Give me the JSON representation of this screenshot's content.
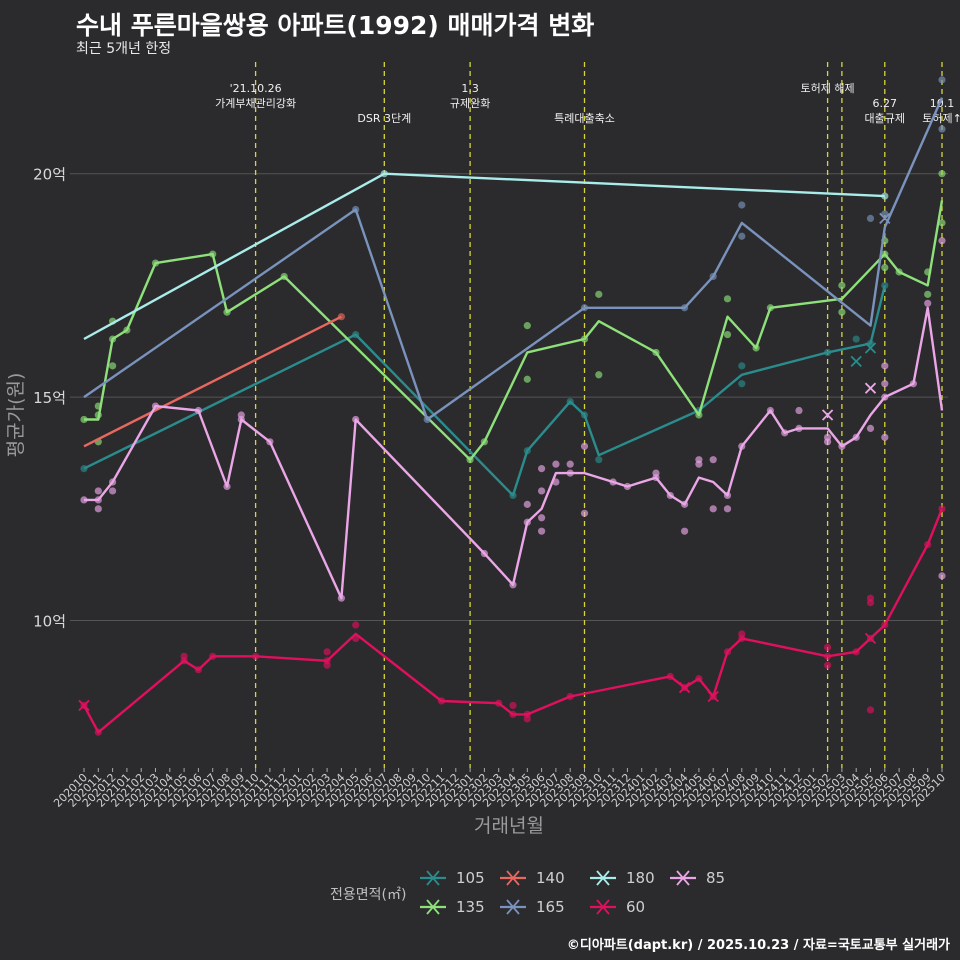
{
  "title": "수내 푸른마을쌍용 아파트(1992) 매매가격 변화",
  "subtitle": "최근 5개년 한정",
  "caption": "©디아파트(dapt.kr) / 2025.10.23 / 자료=국토교통부 실거래가",
  "colors": {
    "background": "#2b2b2d",
    "grid": "#555555",
    "event_line": "#d6d63a"
  },
  "chart_data": {
    "type": "line",
    "xlabel": "거래년월",
    "ylabel": "평균가(원)",
    "ylim": [
      6.7,
      22.5
    ],
    "yticks": [
      {
        "value": 10,
        "label": "10억"
      },
      {
        "value": 15,
        "label": "15억"
      },
      {
        "value": 20,
        "label": "20억"
      }
    ],
    "x_ticks": [
      "202010",
      "202011",
      "202012",
      "202101",
      "202102",
      "202103",
      "202104",
      "202105",
      "202106",
      "202107",
      "202108",
      "202109",
      "202110",
      "202111",
      "202112",
      "202201",
      "202202",
      "202203",
      "202204",
      "202205",
      "202206",
      "202207",
      "202208",
      "202209",
      "202210",
      "202211",
      "202212",
      "202301",
      "202302",
      "202303",
      "202304",
      "202305",
      "202306",
      "202307",
      "202308",
      "202309",
      "202310",
      "202311",
      "202312",
      "202401",
      "202402",
      "202403",
      "202404",
      "202405",
      "202406",
      "202407",
      "202408",
      "202409",
      "202410",
      "202411",
      "202412",
      "202501",
      "202502",
      "202503",
      "202504",
      "202505",
      "202506",
      "202507",
      "202508",
      "202509",
      "202510"
    ],
    "events": [
      {
        "x": 12.0,
        "lines": [
          "'21.10.26",
          "가계부채관리강화"
        ]
      },
      {
        "x": 21.0,
        "lines": [
          "",
          "",
          "DSR 3단계"
        ]
      },
      {
        "x": 27.0,
        "lines": [
          "1.3",
          "규제완화"
        ]
      },
      {
        "x": 35.0,
        "lines": [
          "",
          "",
          "특례대출축소"
        ]
      },
      {
        "x": 52.0,
        "lines": [
          "토허제 해제"
        ]
      },
      {
        "x": 53.0,
        "lines": []
      },
      {
        "x": 56.0,
        "lines": [
          "",
          "6.27",
          "대출규제"
        ]
      },
      {
        "x": 60.0,
        "lines": [
          "",
          "10.1",
          "토허제↑"
        ]
      }
    ],
    "legend_title": "전용면적(㎡)",
    "series": [
      {
        "name": "105",
        "color": "#2a8c8c",
        "line": [
          [
            0,
            13.4
          ],
          [
            19,
            16.4
          ],
          [
            30,
            12.8
          ],
          [
            31,
            13.8
          ],
          [
            34,
            14.9
          ],
          [
            35,
            14.6
          ],
          [
            36,
            13.7
          ],
          [
            43,
            14.7
          ],
          [
            46,
            15.5
          ],
          [
            52,
            16.0
          ],
          [
            55,
            16.2
          ],
          [
            56,
            17.5
          ]
        ],
        "points": [
          [
            0,
            13.4
          ],
          [
            19,
            16.4
          ],
          [
            30,
            12.8
          ],
          [
            31,
            13.8
          ],
          [
            34,
            14.9
          ],
          [
            35,
            14.6
          ],
          [
            36,
            13.6
          ],
          [
            43,
            14.7
          ],
          [
            46,
            15.3
          ],
          [
            46,
            15.7
          ],
          [
            52,
            16.0
          ],
          [
            54,
            16.3
          ],
          [
            55,
            16.2
          ],
          [
            56,
            17.5
          ]
        ],
        "crosses": [
          [
            54,
            15.8
          ],
          [
            55,
            16.1
          ]
        ]
      },
      {
        "name": "135",
        "color": "#8ee07a",
        "line": [
          [
            0,
            14.5
          ],
          [
            1,
            14.5
          ],
          [
            2,
            16.3
          ],
          [
            3,
            16.5
          ],
          [
            5,
            18.0
          ],
          [
            9,
            18.2
          ],
          [
            10,
            16.9
          ],
          [
            14,
            17.7
          ],
          [
            27,
            13.6
          ],
          [
            28,
            14.0
          ],
          [
            31,
            16.0
          ],
          [
            35,
            16.3
          ],
          [
            36,
            16.7
          ],
          [
            40,
            16.0
          ],
          [
            43,
            14.6
          ],
          [
            45,
            16.8
          ],
          [
            47,
            16.1
          ],
          [
            48,
            17.0
          ],
          [
            53,
            17.2
          ],
          [
            56,
            18.2
          ],
          [
            57,
            17.8
          ],
          [
            59,
            17.5
          ],
          [
            60,
            19.4
          ]
        ],
        "points": [
          [
            0,
            14.5
          ],
          [
            1,
            14.0
          ],
          [
            1,
            14.6
          ],
          [
            1,
            14.8
          ],
          [
            2,
            15.7
          ],
          [
            2,
            16.3
          ],
          [
            2,
            16.7
          ],
          [
            3,
            16.5
          ],
          [
            5,
            18.0
          ],
          [
            9,
            18.2
          ],
          [
            10,
            16.9
          ],
          [
            14,
            17.7
          ],
          [
            27,
            13.6
          ],
          [
            28,
            14.0
          ],
          [
            31,
            16.6
          ],
          [
            31,
            15.4
          ],
          [
            35,
            16.3
          ],
          [
            36,
            17.3
          ],
          [
            36,
            15.5
          ],
          [
            40,
            16.0
          ],
          [
            43,
            14.6
          ],
          [
            45,
            16.4
          ],
          [
            45,
            17.2
          ],
          [
            47,
            16.1
          ],
          [
            48,
            17.0
          ],
          [
            53,
            17.5
          ],
          [
            53,
            16.9
          ],
          [
            56,
            18.2
          ],
          [
            56,
            17.9
          ],
          [
            56,
            18.5
          ],
          [
            57,
            17.8
          ],
          [
            59,
            17.3
          ],
          [
            59,
            17.8
          ],
          [
            60,
            20.0
          ],
          [
            60,
            18.9
          ]
        ],
        "crosses": []
      },
      {
        "name": "140",
        "color": "#e8675f",
        "line": [
          [
            0,
            13.9
          ],
          [
            18,
            16.8
          ]
        ],
        "points": [
          [
            18,
            16.8
          ]
        ],
        "crosses": []
      },
      {
        "name": "165",
        "color": "#7a93bd",
        "line": [
          [
            0,
            15.0
          ],
          [
            19,
            19.2
          ],
          [
            24,
            14.5
          ],
          [
            35,
            17.0
          ],
          [
            42,
            17.0
          ],
          [
            44,
            17.7
          ],
          [
            46,
            18.9
          ],
          [
            55,
            16.6
          ],
          [
            56,
            18.8
          ],
          [
            60,
            21.7
          ]
        ],
        "points": [
          [
            19,
            19.2
          ],
          [
            24,
            14.5
          ],
          [
            35,
            17.0
          ],
          [
            42,
            17.0
          ],
          [
            44,
            17.7
          ],
          [
            46,
            19.3
          ],
          [
            46,
            18.6
          ],
          [
            55,
            19.0
          ],
          [
            56,
            19.1
          ],
          [
            60,
            22.1
          ],
          [
            60,
            21.0
          ]
        ],
        "crosses": [
          [
            56,
            19.0
          ]
        ]
      },
      {
        "name": "180",
        "color": "#a9ecea",
        "line": [
          [
            0,
            16.3
          ],
          [
            21,
            20.0
          ],
          [
            56,
            19.5
          ]
        ],
        "points": [
          [
            21,
            20.0
          ],
          [
            56,
            19.5
          ]
        ],
        "crosses": []
      },
      {
        "name": "60",
        "color": "#e0105e",
        "line": [
          [
            0,
            8.1
          ],
          [
            1,
            7.5
          ],
          [
            7,
            9.1
          ],
          [
            8,
            8.9
          ],
          [
            9,
            9.2
          ],
          [
            12,
            9.2
          ],
          [
            17,
            9.1
          ],
          [
            19,
            9.7
          ],
          [
            25,
            8.2
          ],
          [
            29,
            8.15
          ],
          [
            30,
            7.9
          ],
          [
            31,
            7.9
          ],
          [
            34,
            8.3
          ],
          [
            41,
            8.75
          ],
          [
            42,
            8.5
          ],
          [
            43,
            8.7
          ],
          [
            44,
            8.3
          ],
          [
            45,
            9.3
          ],
          [
            46,
            9.6
          ],
          [
            52,
            9.2
          ],
          [
            54,
            9.3
          ],
          [
            55,
            9.6
          ],
          [
            56,
            9.9
          ],
          [
            59,
            11.7
          ],
          [
            60,
            12.5
          ]
        ],
        "points": [
          [
            0,
            8.1
          ],
          [
            1,
            7.5
          ],
          [
            7,
            9.1
          ],
          [
            7,
            9.2
          ],
          [
            8,
            8.9
          ],
          [
            9,
            9.2
          ],
          [
            12,
            9.2
          ],
          [
            17,
            9.1
          ],
          [
            17,
            9.3
          ],
          [
            17,
            9.0
          ],
          [
            19,
            9.6
          ],
          [
            19,
            9.9
          ],
          [
            25,
            8.2
          ],
          [
            29,
            8.15
          ],
          [
            30,
            7.9
          ],
          [
            30,
            8.1
          ],
          [
            31,
            7.9
          ],
          [
            31,
            7.8
          ],
          [
            34,
            8.3
          ],
          [
            41,
            8.75
          ],
          [
            42,
            8.5
          ],
          [
            43,
            8.7
          ],
          [
            44,
            8.3
          ],
          [
            45,
            9.3
          ],
          [
            46,
            9.7
          ],
          [
            46,
            9.6
          ],
          [
            52,
            9.2
          ],
          [
            52,
            9.0
          ],
          [
            52,
            9.4
          ],
          [
            54,
            9.3
          ],
          [
            55,
            10.4
          ],
          [
            55,
            10.5
          ],
          [
            55,
            8.0
          ],
          [
            55,
            9.6
          ],
          [
            56,
            9.9
          ],
          [
            59,
            11.7
          ],
          [
            60,
            12.5
          ]
        ],
        "crosses": [
          [
            0,
            8.1
          ],
          [
            42,
            8.5
          ],
          [
            44,
            8.3
          ],
          [
            55,
            9.6
          ]
        ]
      },
      {
        "name": "85",
        "color": "#eaa6e6",
        "line": [
          [
            0,
            12.7
          ],
          [
            1,
            12.7
          ],
          [
            2,
            13.1
          ],
          [
            5,
            14.8
          ],
          [
            8,
            14.7
          ],
          [
            10,
            13.0
          ],
          [
            11,
            14.5
          ],
          [
            13,
            14.0
          ],
          [
            18,
            10.5
          ],
          [
            19,
            14.5
          ],
          [
            28,
            11.5
          ],
          [
            30,
            10.8
          ],
          [
            31,
            12.2
          ],
          [
            32,
            12.5
          ],
          [
            33,
            13.3
          ],
          [
            35,
            13.3
          ],
          [
            37,
            13.1
          ],
          [
            38,
            13.0
          ],
          [
            40,
            13.2
          ],
          [
            41,
            12.8
          ],
          [
            42,
            12.6
          ],
          [
            43,
            13.2
          ],
          [
            44,
            13.1
          ],
          [
            45,
            12.8
          ],
          [
            46,
            13.9
          ],
          [
            48,
            14.7
          ],
          [
            49,
            14.2
          ],
          [
            50,
            14.3
          ],
          [
            52,
            14.3
          ],
          [
            53,
            13.9
          ],
          [
            54,
            14.1
          ],
          [
            55,
            14.6
          ],
          [
            56,
            15.0
          ],
          [
            58,
            15.3
          ],
          [
            59,
            17.0
          ],
          [
            60,
            14.7
          ]
        ],
        "points": [
          [
            0,
            12.7
          ],
          [
            1,
            12.7
          ],
          [
            1,
            12.5
          ],
          [
            1,
            12.9
          ],
          [
            2,
            13.1
          ],
          [
            2,
            12.9
          ],
          [
            5,
            14.8
          ],
          [
            8,
            14.7
          ],
          [
            10,
            13.0
          ],
          [
            11,
            14.5
          ],
          [
            11,
            14.6
          ],
          [
            13,
            14.0
          ],
          [
            18,
            10.5
          ],
          [
            19,
            14.5
          ],
          [
            28,
            11.5
          ],
          [
            30,
            10.8
          ],
          [
            31,
            12.2
          ],
          [
            31,
            12.6
          ],
          [
            32,
            13.4
          ],
          [
            32,
            12.9
          ],
          [
            32,
            12.3
          ],
          [
            32,
            12.0
          ],
          [
            33,
            13.5
          ],
          [
            33,
            13.1
          ],
          [
            34,
            13.5
          ],
          [
            34,
            13.3
          ],
          [
            35,
            12.4
          ],
          [
            35,
            13.9
          ],
          [
            37,
            13.1
          ],
          [
            38,
            13.0
          ],
          [
            40,
            13.2
          ],
          [
            40,
            13.3
          ],
          [
            41,
            12.8
          ],
          [
            42,
            12.6
          ],
          [
            42,
            12.0
          ],
          [
            43,
            13.5
          ],
          [
            43,
            13.6
          ],
          [
            44,
            12.5
          ],
          [
            44,
            13.6
          ],
          [
            45,
            12.5
          ],
          [
            45,
            12.8
          ],
          [
            46,
            13.9
          ],
          [
            48,
            14.7
          ],
          [
            49,
            14.2
          ],
          [
            50,
            14.3
          ],
          [
            50,
            14.7
          ],
          [
            52,
            14.1
          ],
          [
            52,
            14.0
          ],
          [
            53,
            13.9
          ],
          [
            54,
            14.1
          ],
          [
            55,
            14.3
          ],
          [
            56,
            15.0
          ],
          [
            56,
            15.3
          ],
          [
            56,
            15.7
          ],
          [
            56,
            14.1
          ],
          [
            58,
            15.3
          ],
          [
            59,
            17.1
          ],
          [
            60,
            18.5
          ],
          [
            60,
            11.0
          ]
        ],
        "crosses": [
          [
            52,
            14.6
          ],
          [
            55,
            15.2
          ]
        ]
      }
    ],
    "legend_order": [
      "105",
      "140",
      "180",
      "85",
      "135",
      "165",
      "60"
    ]
  }
}
